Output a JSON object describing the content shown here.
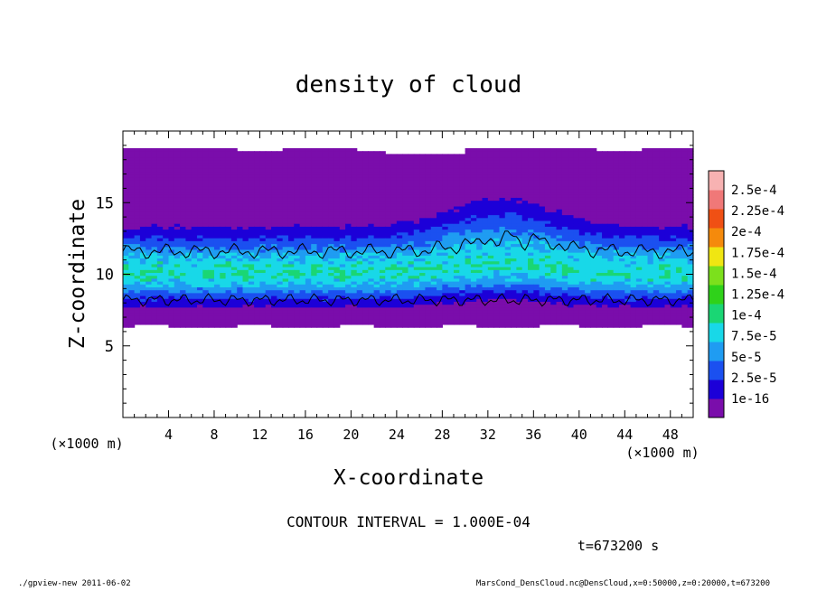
{
  "chart_data": {
    "type": "heatmap",
    "title": "density of cloud",
    "xlabel": "X-coordinate",
    "ylabel": "Z-coordinate",
    "x_unit": "(×1000 m)",
    "y_unit": "(×1000 m)",
    "xlim": [
      0,
      50
    ],
    "ylim": [
      0,
      20
    ],
    "x_ticks": [
      4,
      8,
      12,
      16,
      20,
      24,
      28,
      32,
      36,
      40,
      44,
      48
    ],
    "y_ticks": [
      5,
      10,
      15
    ],
    "contour_interval_text": "CONTOUR INTERVAL = 1.000E-04",
    "time_text": "t=673200 s",
    "colorbar": {
      "labels": [
        "1e-16",
        "2.5e-5",
        "5e-5",
        "7.5e-5",
        "1e-4",
        "1.25e-4",
        "1.5e-4",
        "1.75e-4",
        "2e-4",
        "2.25e-4",
        "2.5e-4"
      ],
      "colors": [
        "#7a0dab",
        "#1c00d8",
        "#1b50f0",
        "#1f9cf2",
        "#18d8e8",
        "#1ad674",
        "#2fd21a",
        "#7ce01c",
        "#f0e612",
        "#f58a0c",
        "#f05014",
        "#f07878",
        "#f7b2b2"
      ]
    },
    "field": {
      "description": "cloud density band between z≈6 and z≈18.8 km with peak ~1.2e-4 around z≈10 km",
      "z_bottom": 6.2,
      "z_top": 18.7,
      "z_peak": 10.0,
      "peak_value": 0.00012
    }
  },
  "footer": {
    "left": "./gpview-new  2011-06-02",
    "right": "MarsCond_DensCloud.nc@DensCloud,x=0:50000,z=0:20000,t=673200"
  }
}
